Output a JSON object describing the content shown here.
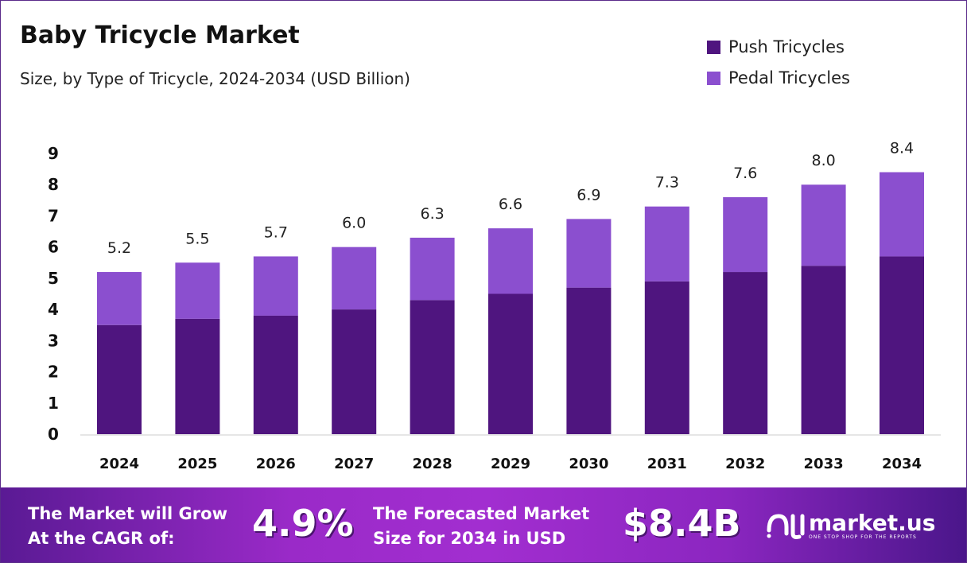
{
  "chart_data": {
    "type": "bar",
    "stacked": true,
    "title": "Baby Tricycle Market",
    "subtitle": "Size, by Type of Tricycle, 2024-2034 (USD Billion)",
    "categories": [
      "2024",
      "2025",
      "2026",
      "2027",
      "2028",
      "2029",
      "2030",
      "2031",
      "2032",
      "2033",
      "2034"
    ],
    "series": [
      {
        "name": "Push Tricycles",
        "color": "#4f157f",
        "values": [
          3.5,
          3.7,
          3.8,
          4.0,
          4.3,
          4.5,
          4.7,
          4.9,
          5.2,
          5.4,
          5.7
        ]
      },
      {
        "name": "Pedal Tricycles",
        "color": "#8b4fcf",
        "values": [
          1.7,
          1.8,
          1.9,
          2.0,
          2.0,
          2.1,
          2.2,
          2.4,
          2.4,
          2.6,
          2.7
        ]
      }
    ],
    "totals": [
      "5.2",
      "5.5",
      "5.7",
      "6.0",
      "6.3",
      "6.6",
      "6.9",
      "7.3",
      "7.6",
      "8.0",
      "8.4"
    ],
    "ylim": [
      0,
      9
    ],
    "yticks": [
      "0",
      "1",
      "2",
      "3",
      "4",
      "5",
      "6",
      "7",
      "8",
      "9"
    ],
    "grid": false,
    "legend": "top-right"
  },
  "footer": {
    "cagr_text_1": "The Market will Grow",
    "cagr_text_2": "At the CAGR of:",
    "cagr_value": "4.9%",
    "forecast_text_1": "The Forecasted Market",
    "forecast_text_2": "Size for 2034 in USD",
    "forecast_value": "$8.4B",
    "logo_text": "market.us",
    "logo_tagline": "ONE STOP SHOP FOR THE REPORTS"
  }
}
